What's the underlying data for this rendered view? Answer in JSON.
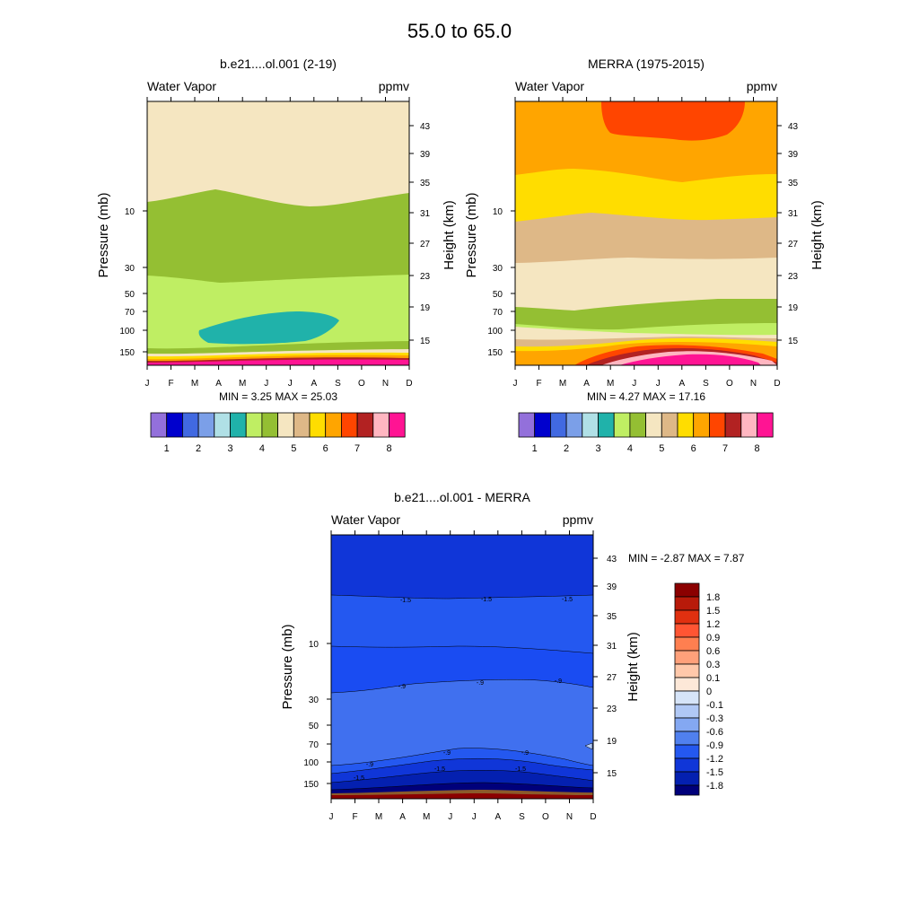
{
  "figure": {
    "title": "55.0 to  65.0"
  },
  "chart_data": [
    {
      "type": "heatmap",
      "title": "b.e21....ol.001 (2-19)",
      "left_label": "Water Vapor",
      "right_label": "ppmv",
      "ylabel": "Pressure (mb)",
      "ylabel_right": "Height (km)",
      "x_ticks": [
        "J",
        "F",
        "M",
        "A",
        "M",
        "J",
        "J",
        "A",
        "S",
        "O",
        "N",
        "D"
      ],
      "y_ticks_pressure": [
        "10",
        "30",
        "50",
        "70",
        "100",
        "150"
      ],
      "y_ticks_height": [
        "43",
        "39",
        "35",
        "31",
        "27",
        "23",
        "19",
        "15"
      ],
      "stats_text": "MIN =   3.25  MAX =  25.03",
      "min": 3.25,
      "max": 25.03,
      "colorbar_labels": [
        "1",
        "2",
        "3",
        "4",
        "5",
        "6",
        "7",
        "8"
      ],
      "colorbar_colors": [
        "#9370db",
        "#0000cd",
        "#4169e1",
        "#7b9fe8",
        "#b0e0e6",
        "#20b2aa",
        "#bfee63",
        "#94bf33",
        "#f5e6c1",
        "#deb887",
        "#ffdd00",
        "#ffa500",
        "#ff4500",
        "#b22222",
        "#ffb6c1",
        "#ff1493"
      ]
    },
    {
      "type": "heatmap",
      "title": "MERRA (1975-2015)",
      "left_label": "Water Vapor",
      "right_label": "ppmv",
      "ylabel": "Pressure (mb)",
      "ylabel_right": "Height (km)",
      "x_ticks": [
        "J",
        "F",
        "M",
        "A",
        "M",
        "J",
        "J",
        "A",
        "S",
        "O",
        "N",
        "D"
      ],
      "y_ticks_pressure": [
        "10",
        "30",
        "50",
        "70",
        "100",
        "150"
      ],
      "y_ticks_height": [
        "43",
        "39",
        "35",
        "31",
        "27",
        "23",
        "19",
        "15"
      ],
      "stats_text": "MIN =   4.27  MAX =  17.16",
      "min": 4.27,
      "max": 17.16,
      "colorbar_labels": [
        "1",
        "2",
        "3",
        "4",
        "5",
        "6",
        "7",
        "8"
      ],
      "colorbar_colors": [
        "#9370db",
        "#0000cd",
        "#4169e1",
        "#7b9fe8",
        "#b0e0e6",
        "#20b2aa",
        "#bfee63",
        "#94bf33",
        "#f5e6c1",
        "#deb887",
        "#ffdd00",
        "#ffa500",
        "#ff4500",
        "#b22222",
        "#ffb6c1",
        "#ff1493"
      ]
    },
    {
      "type": "heatmap",
      "title": "b.e21....ol.001 - MERRA",
      "left_label": "Water Vapor",
      "right_label": "ppmv",
      "ylabel": "Pressure (mb)",
      "ylabel_right": "Height (km)",
      "x_ticks": [
        "J",
        "F",
        "M",
        "A",
        "M",
        "J",
        "J",
        "A",
        "S",
        "O",
        "N",
        "D"
      ],
      "y_ticks_pressure": [
        "10",
        "30",
        "50",
        "70",
        "100",
        "150"
      ],
      "y_ticks_height": [
        "43",
        "39",
        "35",
        "31",
        "27",
        "23",
        "19",
        "15"
      ],
      "stats_text": "MIN =  -2.87  MAX =   7.87",
      "min": -2.87,
      "max": 7.87,
      "contour_labels": [
        "-1.5",
        "-1.5",
        "-1.5",
        "-.9",
        "-.9",
        "-.9",
        "-.9",
        "-.9",
        "-.9",
        "-1.5",
        "-1.5",
        "-1.5"
      ],
      "colorbar_labels": [
        "1.8",
        "1.5",
        "1.2",
        "0.9",
        "0.6",
        "0.3",
        "0.1",
        "0",
        "-0.1",
        "-0.3",
        "-0.6",
        "-0.9",
        "-1.2",
        "-1.5",
        "-1.8"
      ],
      "colorbar_colors": [
        "#8b0000",
        "#b81a0a",
        "#e03010",
        "#ff5533",
        "#ff7f50",
        "#ffa07a",
        "#ffc8aa",
        "#fde8d8",
        "#d6e4f8",
        "#b0c8f5",
        "#84a8f2",
        "#5080ee",
        "#2458f0",
        "#1036d8",
        "#0420b0",
        "#00007a"
      ]
    }
  ]
}
